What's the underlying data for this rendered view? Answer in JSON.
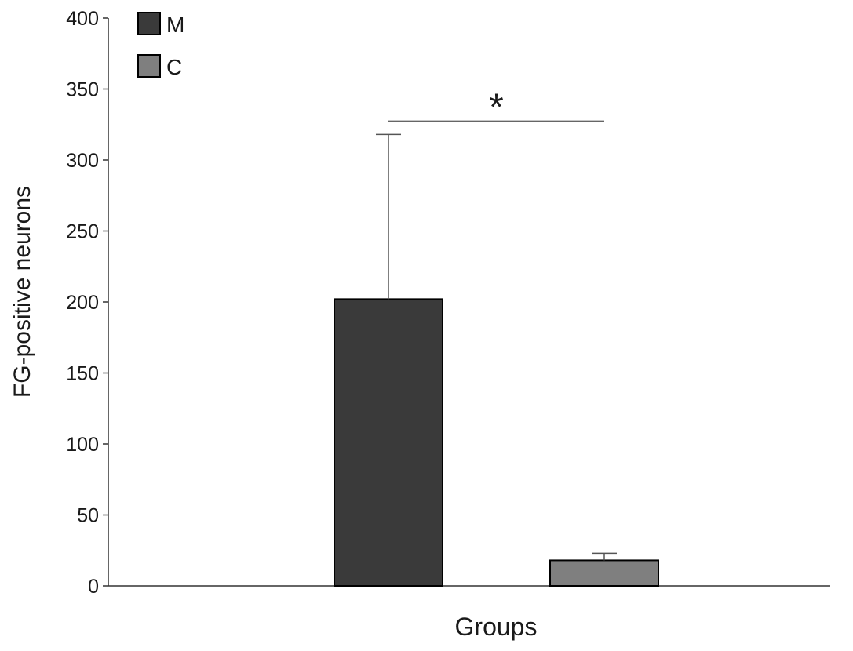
{
  "chart_data": {
    "type": "bar",
    "title": "",
    "xlabel": "Groups",
    "ylabel": "FG-positive neurons",
    "ylim": [
      0,
      400
    ],
    "yticks": [
      0,
      50,
      100,
      150,
      200,
      250,
      300,
      350,
      400
    ],
    "grid": false,
    "legend_position": "top-left",
    "series": [
      {
        "name": "M",
        "value": 202,
        "error": 116,
        "color": "#3a3a3a"
      },
      {
        "name": "C",
        "value": 18,
        "error": 5,
        "color": "#7f7f7f"
      }
    ],
    "annotation": {
      "text": "*",
      "between": [
        "M",
        "C"
      ]
    }
  }
}
